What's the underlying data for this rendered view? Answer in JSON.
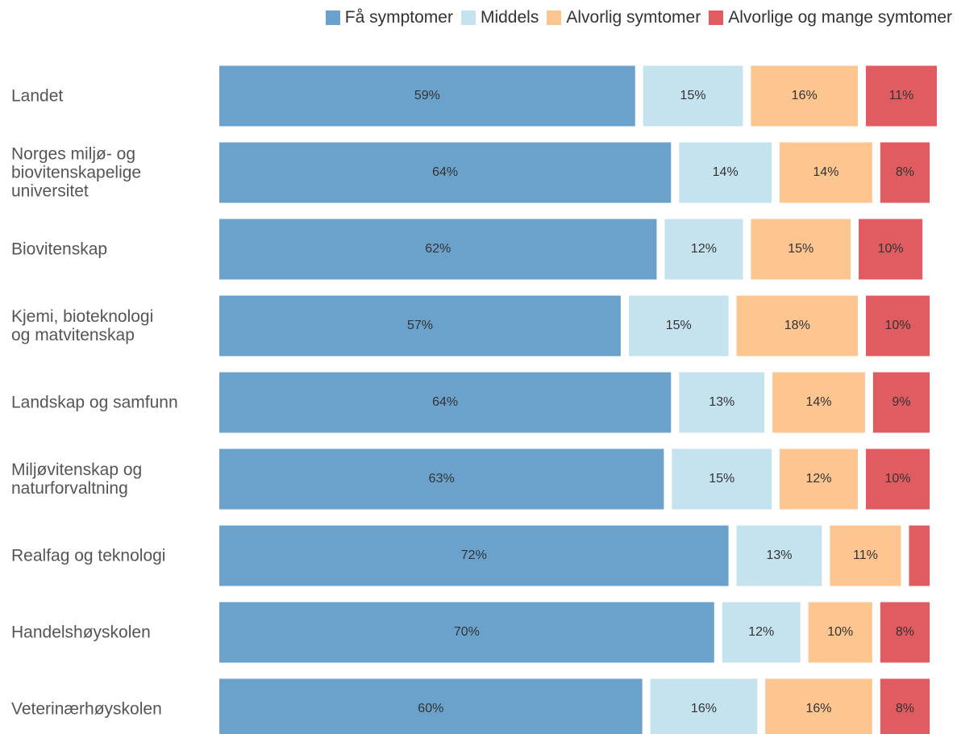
{
  "chart_data": {
    "type": "stacked-bar-horizontal",
    "categories": [
      "Landet",
      "Norges miljø- og\nbiovitenskapelige\nuniversitet",
      "Biovitenskap",
      "Kjemi, bioteknologi\nog matvitenskap",
      "Landskap og samfunn",
      "Miljøvitenskap og\nnaturforvaltning",
      "Realfag og teknologi",
      "Handelshøyskolen",
      "Veterinærhøyskolen"
    ],
    "series": [
      {
        "name": "Få symptomer",
        "color": "#6aa2cc",
        "values": [
          59,
          64,
          62,
          57,
          64,
          63,
          72,
          70,
          60
        ],
        "value_labels": [
          "59%",
          "64%",
          "62%",
          "57%",
          "64%",
          "63%",
          "72%",
          "70%",
          "60%"
        ]
      },
      {
        "name": "Middels",
        "color": "#c5e3ef",
        "values": [
          15,
          14,
          12,
          15,
          13,
          15,
          13,
          12,
          16
        ],
        "value_labels": [
          "15%",
          "14%",
          "12%",
          "15%",
          "13%",
          "15%",
          "13%",
          "12%",
          "16%"
        ]
      },
      {
        "name": "Alvorlig symtomer",
        "color": "#fdc590",
        "values": [
          16,
          14,
          15,
          18,
          14,
          12,
          11,
          10,
          16
        ],
        "value_labels": [
          "16%",
          "14%",
          "15%",
          "18%",
          "14%",
          "12%",
          "11%",
          "10%",
          "16%"
        ]
      },
      {
        "name": "Alvorlige og mange symtomer",
        "color": "#e05c60",
        "values": [
          11,
          8,
          10,
          10,
          9,
          10,
          4,
          8,
          8
        ],
        "value_labels": [
          "11%",
          "8%",
          "10%",
          "10%",
          "9%",
          "10%",
          null,
          "8%",
          "8%"
        ]
      }
    ],
    "legend": "top-right"
  }
}
